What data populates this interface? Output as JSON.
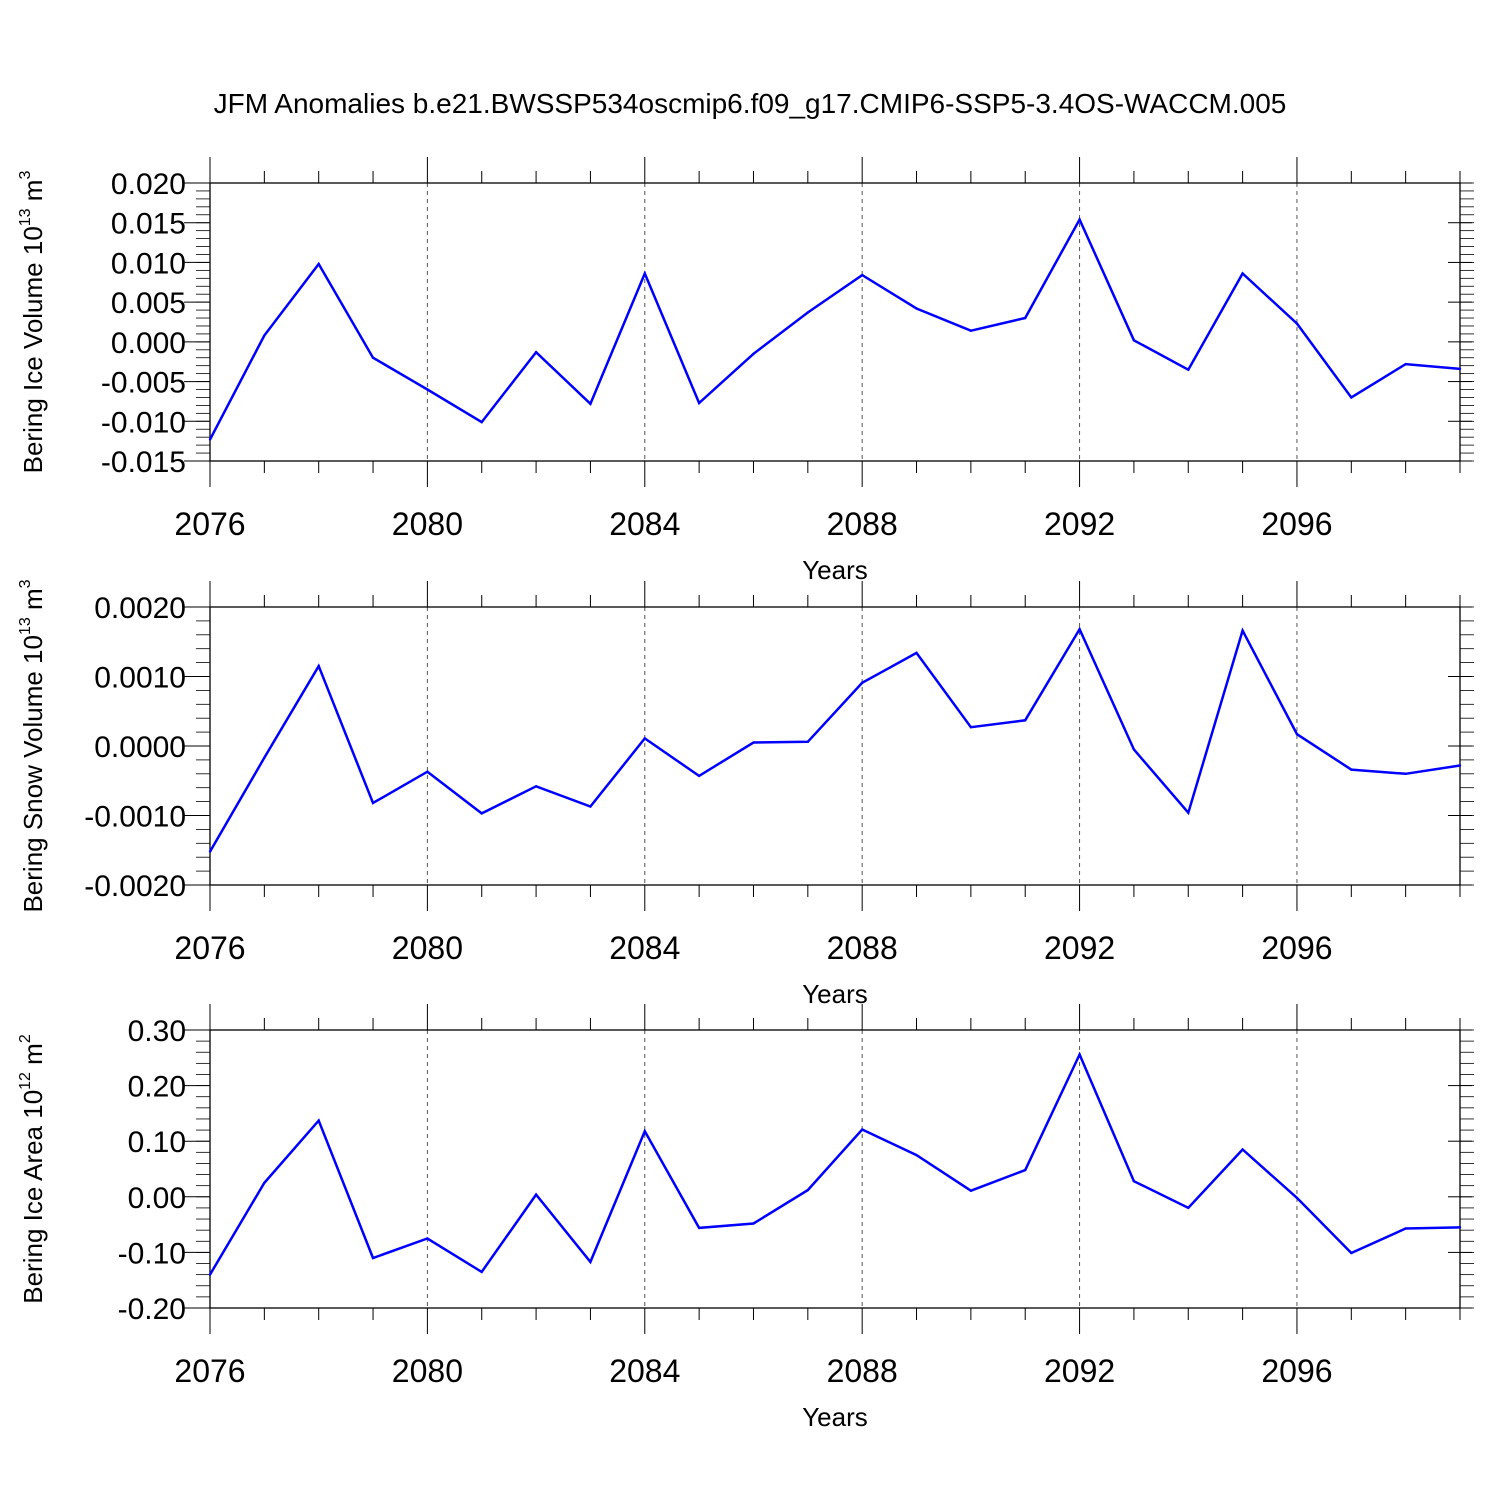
{
  "figure": {
    "title": "JFM Anomalies b.e21.BWSSP534oscmip6.f09_g17.CMIP6-SSP5-3.4OS-WACCM.005"
  },
  "chart_data": [
    {
      "type": "line",
      "ylabel": "Bering Ice Volume 10",
      "ylabel_exp": "13",
      "ylabel_unit": " m",
      "ylabel_unit_exp": "3",
      "xlabel": "Years",
      "x": [
        2076,
        2077,
        2078,
        2079,
        2080,
        2081,
        2082,
        2083,
        2084,
        2085,
        2086,
        2087,
        2088,
        2089,
        2090,
        2091,
        2092,
        2093,
        2094,
        2095,
        2096,
        2097,
        2098,
        2099
      ],
      "values": [
        -0.0123,
        0.0008,
        0.0098,
        -0.002,
        -0.006,
        -0.0101,
        -0.0013,
        -0.0078,
        0.0086,
        -0.0077,
        -0.0015,
        0.0037,
        0.0084,
        0.0042,
        0.0014,
        0.003,
        0.0154,
        0.0002,
        -0.0035,
        0.0086,
        0.0023,
        -0.007,
        -0.0028,
        -0.0034
      ],
      "xlim": [
        2076,
        2099
      ],
      "ylim": [
        -0.015,
        0.02
      ],
      "yticks": [
        -0.015,
        -0.01,
        -0.005,
        0.0,
        0.005,
        0.01,
        0.015,
        0.02
      ],
      "ytick_labels": [
        "-0.015",
        "-0.010",
        "-0.005",
        "0.000",
        "0.005",
        "0.010",
        "0.015",
        "0.020"
      ],
      "yminor": 0.001,
      "xticks": [
        2076,
        2080,
        2084,
        2088,
        2092,
        2096
      ],
      "xtick_labels": [
        "2076",
        "2080",
        "2084",
        "2088",
        "2092",
        "2096"
      ],
      "grid_x": [
        2080,
        2084,
        2088,
        2092,
        2096
      ],
      "color": "#0000ff"
    },
    {
      "type": "line",
      "ylabel": "Bering Snow Volume 10",
      "ylabel_exp": "13",
      "ylabel_unit": " m",
      "ylabel_unit_exp": "3",
      "xlabel": "Years",
      "x": [
        2076,
        2077,
        2078,
        2079,
        2080,
        2081,
        2082,
        2083,
        2084,
        2085,
        2086,
        2087,
        2088,
        2089,
        2090,
        2091,
        2092,
        2093,
        2094,
        2095,
        2096,
        2097,
        2098,
        2099
      ],
      "values": [
        -0.00152,
        -0.00017,
        0.00115,
        -0.00082,
        -0.00037,
        -0.00097,
        -0.00058,
        -0.00087,
        0.00011,
        -0.00043,
        5e-05,
        6e-05,
        0.00091,
        0.00134,
        0.00027,
        0.00037,
        0.00168,
        -5e-05,
        -0.00096,
        0.00166,
        0.00017,
        -0.00034,
        -0.0004,
        -0.00028
      ],
      "xlim": [
        2076,
        2099
      ],
      "ylim": [
        -0.002,
        0.002
      ],
      "yticks": [
        -0.002,
        -0.001,
        0.0,
        0.001,
        0.002
      ],
      "ytick_labels": [
        "-0.0020",
        "-0.0010",
        "0.0000",
        "0.0010",
        "0.0020"
      ],
      "yminor": 0.0002,
      "xticks": [
        2076,
        2080,
        2084,
        2088,
        2092,
        2096
      ],
      "xtick_labels": [
        "2076",
        "2080",
        "2084",
        "2088",
        "2092",
        "2096"
      ],
      "grid_x": [
        2080,
        2084,
        2088,
        2092,
        2096
      ],
      "color": "#0000ff"
    },
    {
      "type": "line",
      "ylabel": "Bering Ice Area 10",
      "ylabel_exp": "12",
      "ylabel_unit": " m",
      "ylabel_unit_exp": "2",
      "xlabel": "Years",
      "x": [
        2076,
        2077,
        2078,
        2079,
        2080,
        2081,
        2082,
        2083,
        2084,
        2085,
        2086,
        2087,
        2088,
        2089,
        2090,
        2091,
        2092,
        2093,
        2094,
        2095,
        2096,
        2097,
        2098,
        2099
      ],
      "values": [
        -0.14,
        0.025,
        0.137,
        -0.11,
        -0.075,
        -0.135,
        0.004,
        -0.117,
        0.118,
        -0.056,
        -0.048,
        0.012,
        0.121,
        0.075,
        0.011,
        0.048,
        0.256,
        0.028,
        -0.02,
        0.085,
        -0.002,
        -0.101,
        -0.057,
        -0.055
      ],
      "xlim": [
        2076,
        2099
      ],
      "ylim": [
        -0.2,
        0.3
      ],
      "yticks": [
        -0.2,
        -0.1,
        0.0,
        0.1,
        0.2,
        0.3
      ],
      "ytick_labels": [
        "-0.20",
        "-0.10",
        "0.00",
        "0.10",
        "0.20",
        "0.30"
      ],
      "yminor": 0.02,
      "xticks": [
        2076,
        2080,
        2084,
        2088,
        2092,
        2096
      ],
      "xtick_labels": [
        "2076",
        "2080",
        "2084",
        "2088",
        "2092",
        "2096"
      ],
      "grid_x": [
        2080,
        2084,
        2088,
        2092,
        2096
      ],
      "color": "#0000ff"
    }
  ]
}
